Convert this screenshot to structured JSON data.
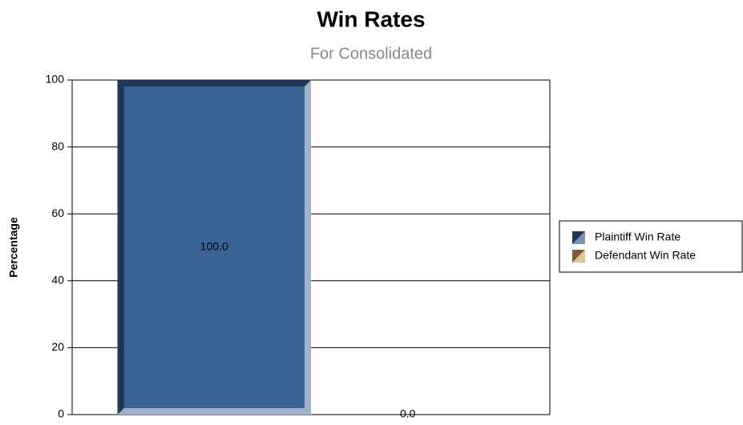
{
  "chart_data": {
    "type": "bar",
    "title": "Win Rates",
    "subtitle": "For Consolidated",
    "y_label": "Percentage",
    "categories": [
      null
    ],
    "series": [
      {
        "name": "Plaintiff Win Rate",
        "color": "#3b6496",
        "values": [
          100
        ],
        "value_labels": [
          "100.0"
        ]
      },
      {
        "name": "Defendant Win Rate",
        "color": "#e0a866",
        "values": [
          0
        ],
        "value_labels": [
          "0.0"
        ]
      }
    ],
    "ylim": [
      0,
      100
    ],
    "yticks": [
      0,
      20,
      40,
      60,
      80,
      100
    ],
    "grid": true,
    "legend": "right"
  }
}
